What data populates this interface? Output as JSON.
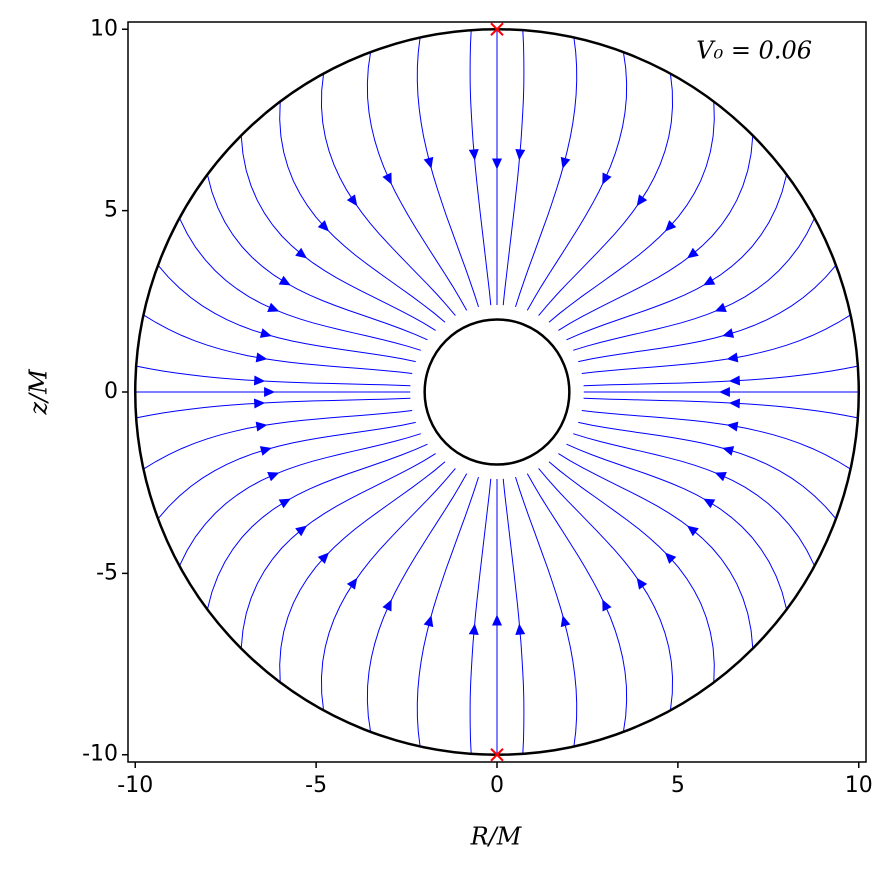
{
  "chart_data": {
    "type": "streamplot",
    "annotation": "V₀ = 0.06",
    "x_label": "R/M",
    "y_label": "z/M",
    "xlim": [
      -10.2,
      10.2
    ],
    "ylim": [
      -10.2,
      10.2
    ],
    "xticks": [
      -10,
      -5,
      0,
      5,
      10
    ],
    "yticks": [
      -10,
      -5,
      0,
      5,
      10
    ],
    "stream_color": "#0000ff",
    "circles": [
      {
        "r": 10,
        "color": "#000000"
      },
      {
        "r": 2,
        "color": "#000000"
      }
    ],
    "markers": {
      "x": [
        0,
        0
      ],
      "y": [
        10,
        -10
      ],
      "color": "#ff0000"
    }
  }
}
